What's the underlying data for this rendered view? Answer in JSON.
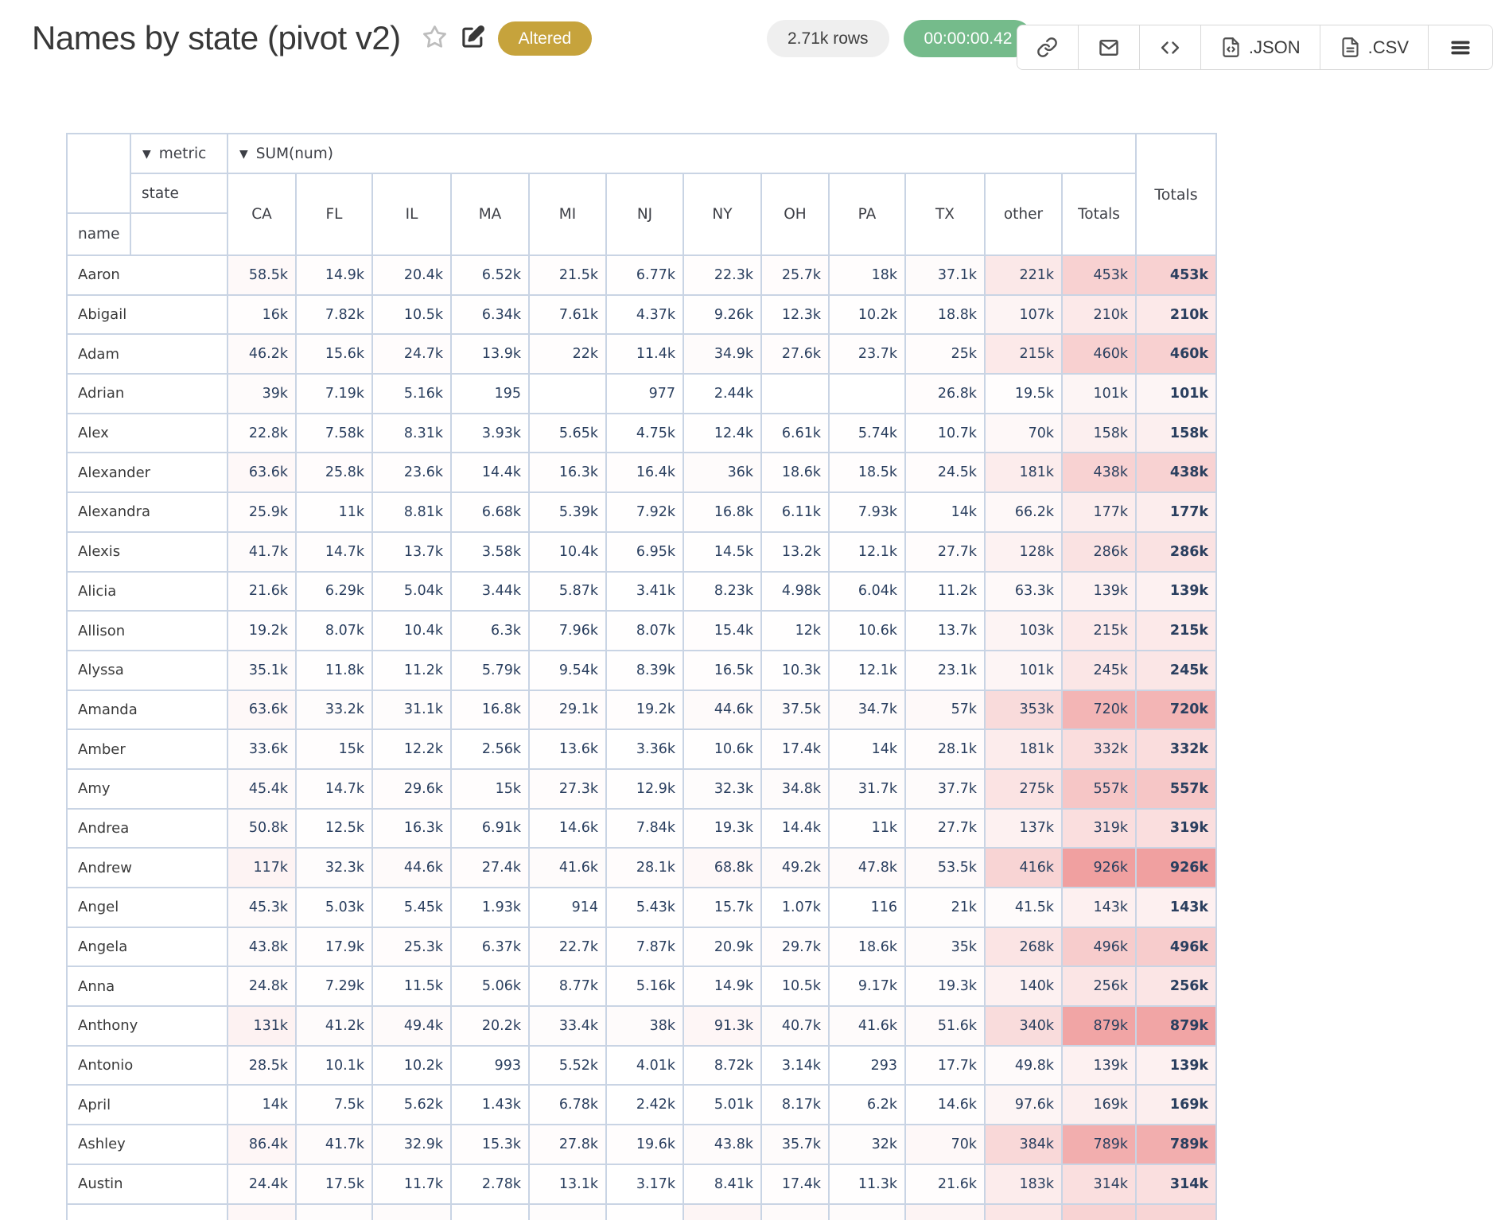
{
  "header": {
    "title": "Names by state (pivot v2)",
    "status_badge": "Altered",
    "row_count": "2.71k rows",
    "runtime": "00:00:00.42",
    "toolbar": {
      "json_label": ".JSON",
      "csv_label": ".CSV"
    },
    "colors": {
      "badge_bg": "#c6a33c",
      "rows_pill_bg": "#efefef",
      "runtime_pill_bg": "#75bb8b"
    }
  },
  "pivot": {
    "dropdown_arrow": "▼",
    "metric_dropdown": "metric",
    "value_dropdown": "SUM(num)",
    "state_label": "state",
    "name_label": "name",
    "totals_label": "Totals",
    "grand_totals_label": "Totals",
    "columns": [
      "CA",
      "FL",
      "IL",
      "MA",
      "MI",
      "NJ",
      "NY",
      "OH",
      "PA",
      "TX",
      "other",
      "Totals"
    ],
    "heat": {
      "max_value": 926000,
      "max_color": "#f0a0a0",
      "min_color": "#ffffff",
      "border_color": "#c9d4e4",
      "number_color": "#2a3f5f"
    },
    "rows": [
      {
        "name": "Aaron",
        "values": [
          "58.5k",
          "14.9k",
          "20.4k",
          "6.52k",
          "21.5k",
          "6.77k",
          "22.3k",
          "25.7k",
          "18k",
          "37.1k",
          "221k",
          "453k"
        ],
        "total": "453k"
      },
      {
        "name": "Abigail",
        "values": [
          "16k",
          "7.82k",
          "10.5k",
          "6.34k",
          "7.61k",
          "4.37k",
          "9.26k",
          "12.3k",
          "10.2k",
          "18.8k",
          "107k",
          "210k"
        ],
        "total": "210k"
      },
      {
        "name": "Adam",
        "values": [
          "46.2k",
          "15.6k",
          "24.7k",
          "13.9k",
          "22k",
          "11.4k",
          "34.9k",
          "27.6k",
          "23.7k",
          "25k",
          "215k",
          "460k"
        ],
        "total": "460k"
      },
      {
        "name": "Adrian",
        "values": [
          "39k",
          "7.19k",
          "5.16k",
          "195",
          "",
          "977",
          "2.44k",
          "",
          "",
          "26.8k",
          "19.5k",
          "101k"
        ],
        "total": "101k"
      },
      {
        "name": "Alex",
        "values": [
          "22.8k",
          "7.58k",
          "8.31k",
          "3.93k",
          "5.65k",
          "4.75k",
          "12.4k",
          "6.61k",
          "5.74k",
          "10.7k",
          "70k",
          "158k"
        ],
        "total": "158k"
      },
      {
        "name": "Alexander",
        "values": [
          "63.6k",
          "25.8k",
          "23.6k",
          "14.4k",
          "16.3k",
          "16.4k",
          "36k",
          "18.6k",
          "18.5k",
          "24.5k",
          "181k",
          "438k"
        ],
        "total": "438k"
      },
      {
        "name": "Alexandra",
        "values": [
          "25.9k",
          "11k",
          "8.81k",
          "6.68k",
          "5.39k",
          "7.92k",
          "16.8k",
          "6.11k",
          "7.93k",
          "14k",
          "66.2k",
          "177k"
        ],
        "total": "177k"
      },
      {
        "name": "Alexis",
        "values": [
          "41.7k",
          "14.7k",
          "13.7k",
          "3.58k",
          "10.4k",
          "6.95k",
          "14.5k",
          "13.2k",
          "12.1k",
          "27.7k",
          "128k",
          "286k"
        ],
        "total": "286k"
      },
      {
        "name": "Alicia",
        "values": [
          "21.6k",
          "6.29k",
          "5.04k",
          "3.44k",
          "5.87k",
          "3.41k",
          "8.23k",
          "4.98k",
          "6.04k",
          "11.2k",
          "63.3k",
          "139k"
        ],
        "total": "139k"
      },
      {
        "name": "Allison",
        "values": [
          "19.2k",
          "8.07k",
          "10.4k",
          "6.3k",
          "7.96k",
          "8.07k",
          "15.4k",
          "12k",
          "10.6k",
          "13.7k",
          "103k",
          "215k"
        ],
        "total": "215k"
      },
      {
        "name": "Alyssa",
        "values": [
          "35.1k",
          "11.8k",
          "11.2k",
          "5.79k",
          "9.54k",
          "8.39k",
          "16.5k",
          "10.3k",
          "12.1k",
          "23.1k",
          "101k",
          "245k"
        ],
        "total": "245k"
      },
      {
        "name": "Amanda",
        "values": [
          "63.6k",
          "33.2k",
          "31.1k",
          "16.8k",
          "29.1k",
          "19.2k",
          "44.6k",
          "37.5k",
          "34.7k",
          "57k",
          "353k",
          "720k"
        ],
        "total": "720k"
      },
      {
        "name": "Amber",
        "values": [
          "33.6k",
          "15k",
          "12.2k",
          "2.56k",
          "13.6k",
          "3.36k",
          "10.6k",
          "17.4k",
          "14k",
          "28.1k",
          "181k",
          "332k"
        ],
        "total": "332k"
      },
      {
        "name": "Amy",
        "values": [
          "45.4k",
          "14.7k",
          "29.6k",
          "15k",
          "27.3k",
          "12.9k",
          "32.3k",
          "34.8k",
          "31.7k",
          "37.7k",
          "275k",
          "557k"
        ],
        "total": "557k"
      },
      {
        "name": "Andrea",
        "values": [
          "50.8k",
          "12.5k",
          "16.3k",
          "6.91k",
          "14.6k",
          "7.84k",
          "19.3k",
          "14.4k",
          "11k",
          "27.7k",
          "137k",
          "319k"
        ],
        "total": "319k"
      },
      {
        "name": "Andrew",
        "values": [
          "117k",
          "32.3k",
          "44.6k",
          "27.4k",
          "41.6k",
          "28.1k",
          "68.8k",
          "49.2k",
          "47.8k",
          "53.5k",
          "416k",
          "926k"
        ],
        "total": "926k"
      },
      {
        "name": "Angel",
        "values": [
          "45.3k",
          "5.03k",
          "5.45k",
          "1.93k",
          "914",
          "5.43k",
          "15.7k",
          "1.07k",
          "116",
          "21k",
          "41.5k",
          "143k"
        ],
        "total": "143k"
      },
      {
        "name": "Angela",
        "values": [
          "43.8k",
          "17.9k",
          "25.3k",
          "6.37k",
          "22.7k",
          "7.87k",
          "20.9k",
          "29.7k",
          "18.6k",
          "35k",
          "268k",
          "496k"
        ],
        "total": "496k"
      },
      {
        "name": "Anna",
        "values": [
          "24.8k",
          "7.29k",
          "11.5k",
          "5.06k",
          "8.77k",
          "5.16k",
          "14.9k",
          "10.5k",
          "9.17k",
          "19.3k",
          "140k",
          "256k"
        ],
        "total": "256k"
      },
      {
        "name": "Anthony",
        "values": [
          "131k",
          "41.2k",
          "49.4k",
          "20.2k",
          "33.4k",
          "38k",
          "91.3k",
          "40.7k",
          "41.6k",
          "51.6k",
          "340k",
          "879k"
        ],
        "total": "879k"
      },
      {
        "name": "Antonio",
        "values": [
          "28.5k",
          "10.1k",
          "10.2k",
          "993",
          "5.52k",
          "4.01k",
          "8.72k",
          "3.14k",
          "293",
          "17.7k",
          "49.8k",
          "139k"
        ],
        "total": "139k"
      },
      {
        "name": "April",
        "values": [
          "14k",
          "7.5k",
          "5.62k",
          "1.43k",
          "6.78k",
          "2.42k",
          "5.01k",
          "8.17k",
          "6.2k",
          "14.6k",
          "97.6k",
          "169k"
        ],
        "total": "169k"
      },
      {
        "name": "Ashley",
        "values": [
          "86.4k",
          "41.7k",
          "32.9k",
          "15.3k",
          "27.8k",
          "19.6k",
          "43.8k",
          "35.7k",
          "32k",
          "70k",
          "384k",
          "789k"
        ],
        "total": "789k"
      },
      {
        "name": "Austin",
        "values": [
          "24.4k",
          "17.5k",
          "11.7k",
          "2.78k",
          "13.1k",
          "3.17k",
          "8.41k",
          "17.4k",
          "11.3k",
          "21.6k",
          "183k",
          "314k"
        ],
        "total": "314k"
      }
    ],
    "clipped_row_colors": [
      "#fef7f7",
      "#fefcfc",
      "#fefbfb",
      "#fffefe",
      "#fefcfc",
      "#fffefe",
      "#fdf5f5",
      "#fefafa",
      "#fefbfb",
      "#fdf4f4",
      "#fbe6e6",
      "#f8d3d3",
      "#f8d5d5"
    ]
  }
}
